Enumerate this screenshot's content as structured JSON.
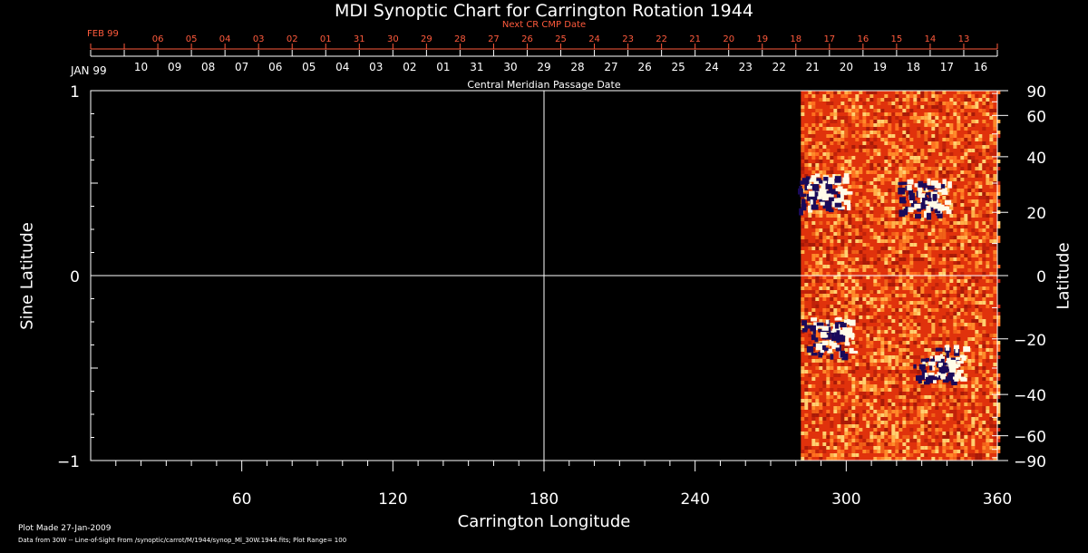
{
  "chart_data": {
    "type": "heatmap",
    "title": "MDI Synoptic Chart for Carrington Rotation 1944",
    "xlabel": "Carrington Longitude",
    "ylabel_left": "Sine Latitude",
    "ylabel_right": "Latitude",
    "xlim": [
      0,
      360
    ],
    "ylim": [
      -1,
      1
    ],
    "x_ticks": [
      60,
      120,
      180,
      240,
      300,
      360
    ],
    "y_ticks_left": [
      -1,
      0,
      1
    ],
    "y_ticks_left_labels": [
      "−1",
      "0",
      "1"
    ],
    "y_ticks_right_deg": [
      90,
      60,
      40,
      20,
      0,
      -20,
      -40,
      -60,
      -90
    ],
    "y_ticks_right_labels": [
      "90",
      "60",
      "40",
      "20",
      "0",
      "−20",
      "−40",
      "−60",
      "−90"
    ],
    "grid": true,
    "data_coverage_longitude": [
      282,
      360
    ],
    "bipolar_regions": [
      {
        "lon": 290,
        "sinlat": 0.45
      },
      {
        "lon": 330,
        "sinlat": 0.42
      },
      {
        "lon": 292,
        "sinlat": -0.33
      },
      {
        "lon": 336,
        "sinlat": -0.48
      }
    ],
    "top_axis_label": "Central Meridian Passage Date",
    "top_axis_start_month": "JAN 99",
    "top_axis_dates": [
      "10",
      "09",
      "08",
      "07",
      "06",
      "05",
      "04",
      "03",
      "02",
      "01",
      "31",
      "30",
      "29",
      "28",
      "27",
      "26",
      "25",
      "24",
      "23",
      "22",
      "21",
      "20",
      "19",
      "18",
      "17",
      "16"
    ],
    "next_cr_label": "Next CR CMP Date",
    "next_cr_start_month": "FEB 99",
    "next_cr_dates": [
      "06",
      "05",
      "04",
      "03",
      "02",
      "01",
      "31",
      "30",
      "29",
      "28",
      "27",
      "26",
      "25",
      "24",
      "23",
      "22",
      "21",
      "20",
      "19",
      "18",
      "17",
      "16",
      "15",
      "14",
      "13"
    ],
    "plot_range": "100"
  },
  "footer": {
    "made": "Plot Made 27-Jan-2009",
    "source": "Data from 30W -- Line-of-Sight From /synoptic/carrot/M/1944/synop_Ml_30W.1944.fits; Plot Range=  100"
  },
  "colors": {
    "background": "#000000",
    "axes": "#ffffff",
    "next_cr": "#ff5a3c",
    "field_base": "#e0320c",
    "positive": "#fffbe8",
    "negative": "#1a0a5a"
  }
}
